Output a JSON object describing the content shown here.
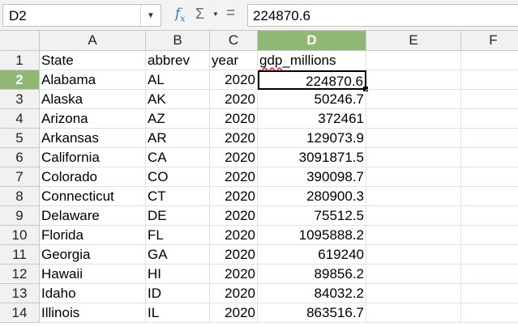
{
  "name_box": {
    "value": "D2"
  },
  "formula": {
    "value": "224870.6"
  },
  "columns": [
    "A",
    "B",
    "C",
    "D",
    "E",
    "F"
  ],
  "active_column": "D",
  "active_row": 2,
  "rows": [
    {
      "num": "1",
      "a": "State",
      "b": "abbrev",
      "c": "year",
      "d": "gdp_millions"
    },
    {
      "num": "2",
      "a": "Alabama",
      "b": "AL",
      "c": "2020",
      "d": "224870.6"
    },
    {
      "num": "3",
      "a": "Alaska",
      "b": "AK",
      "c": "2020",
      "d": "50246.7"
    },
    {
      "num": "4",
      "a": "Arizona",
      "b": "AZ",
      "c": "2020",
      "d": "372461"
    },
    {
      "num": "5",
      "a": "Arkansas",
      "b": "AR",
      "c": "2020",
      "d": "129073.9"
    },
    {
      "num": "6",
      "a": "California",
      "b": "CA",
      "c": "2020",
      "d": "3091871.5"
    },
    {
      "num": "7",
      "a": "Colorado",
      "b": "CO",
      "c": "2020",
      "d": "390098.7"
    },
    {
      "num": "8",
      "a": "Connecticut",
      "b": "CT",
      "c": "2020",
      "d": "280900.3"
    },
    {
      "num": "9",
      "a": "Delaware",
      "b": "DE",
      "c": "2020",
      "d": "75512.5"
    },
    {
      "num": "10",
      "a": "Florida",
      "b": "FL",
      "c": "2020",
      "d": "1095888.2"
    },
    {
      "num": "11",
      "a": "Georgia",
      "b": "GA",
      "c": "2020",
      "d": "619240"
    },
    {
      "num": "12",
      "a": "Hawaii",
      "b": "HI",
      "c": "2020",
      "d": "89856.2"
    },
    {
      "num": "13",
      "a": "Idaho",
      "b": "ID",
      "c": "2020",
      "d": "84032.2"
    },
    {
      "num": "14",
      "a": "Illinois",
      "b": "IL",
      "c": "2020",
      "d": "863516.7"
    }
  ],
  "colors": {
    "active_header": "#90b874",
    "spellcheck": "#e03030",
    "fx_icon": "#3a6fb0"
  }
}
